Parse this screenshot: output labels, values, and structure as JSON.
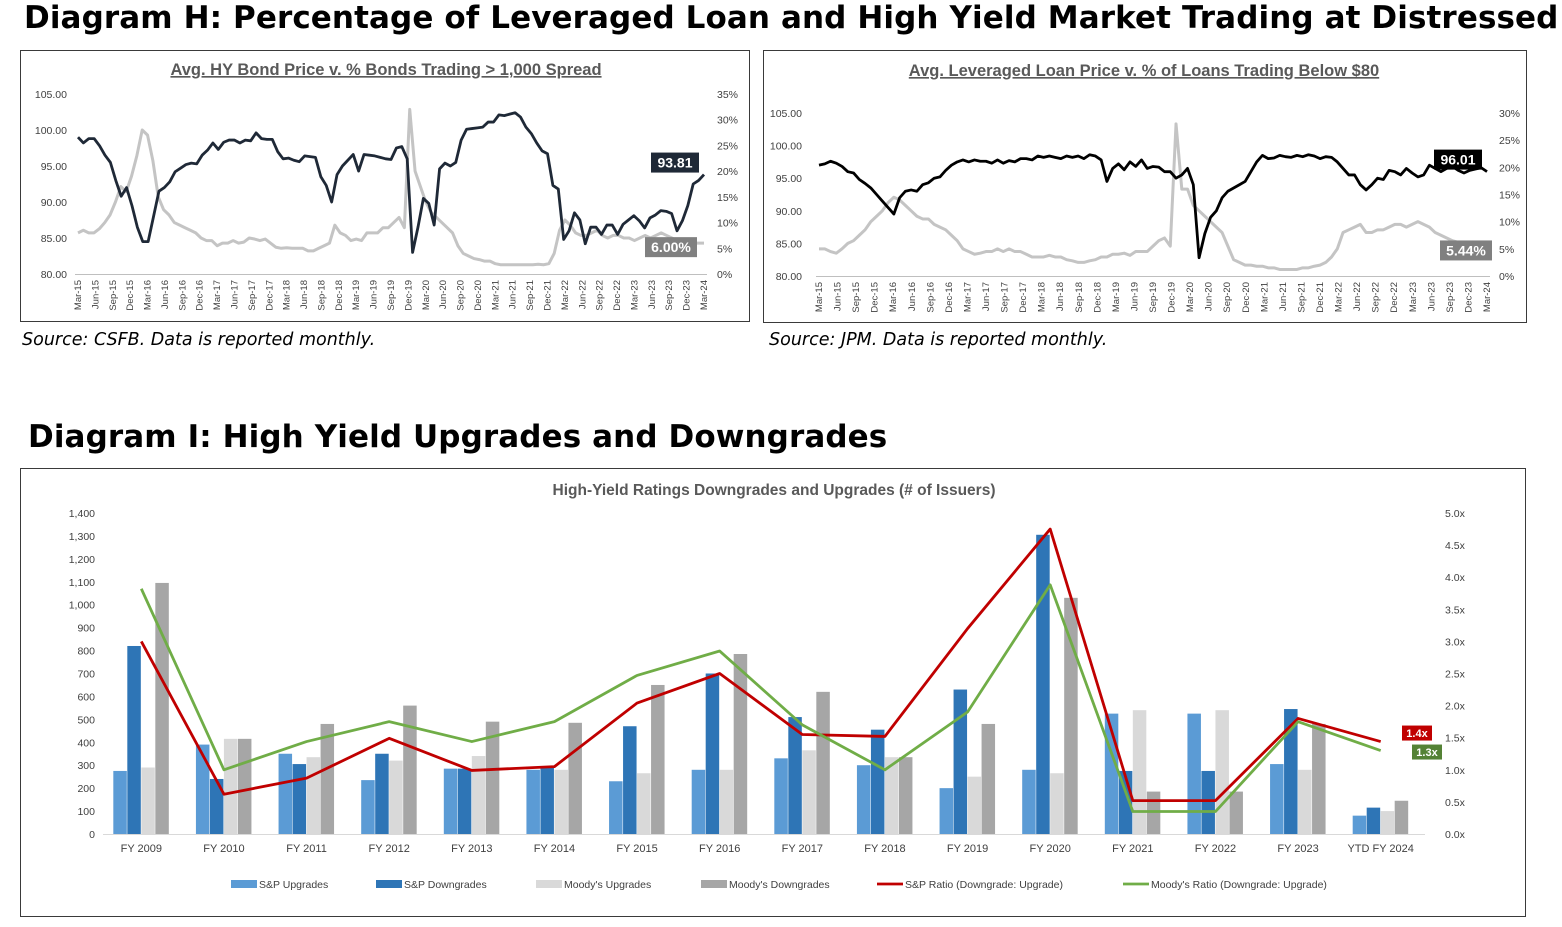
{
  "diagram_h": {
    "title": "Diagram H: Percentage of Leveraged Loan and High Yield Market Trading at Distressed",
    "source_left": "Source: CSFB. Data is reported monthly.",
    "source_right": "Source: JPM. Data is reported monthly."
  },
  "diagram_i": {
    "title": "Diagram I: High Yield Upgrades and Downgrades"
  },
  "colors": {
    "price_line_left": "#1f2937",
    "price_line_right": "#000000",
    "pct_line": "#c4c4c4",
    "sp_upgrades": "#5b9bd5",
    "sp_downgrades": "#2e75b6",
    "moodys_upgrades": "#d9d9d9",
    "moodys_downgrades": "#a6a6a6",
    "sp_ratio": "#c00000",
    "moodys_ratio": "#70ad47"
  },
  "chart_data": [
    {
      "type": "line",
      "title": "Avg. HY Bond Price v. % Bonds Trading > 1,000 Spread",
      "x_ticks": [
        "Mar-15",
        "Jun-15",
        "Sep-15",
        "Dec-15",
        "Mar-16",
        "Jun-16",
        "Sep-16",
        "Dec-16",
        "Mar-17",
        "Jun-17",
        "Sep-17",
        "Dec-17",
        "Mar-18",
        "Jun-18",
        "Sep-18",
        "Dec-18",
        "Mar-19",
        "Jun-19",
        "Sep-19",
        "Dec-19",
        "Mar-20",
        "Jun-20",
        "Sep-20",
        "Dec-20",
        "Mar-21",
        "Jun-21",
        "Sep-21",
        "Dec-21",
        "Mar-22",
        "Jun-22",
        "Sep-22",
        "Dec-22",
        "Mar-23",
        "Jun-23",
        "Sep-23",
        "Dec-23",
        "Mar-24"
      ],
      "y_left_ticks": [
        "105.00",
        "100.00",
        "95.00",
        "90.00",
        "85.00",
        "80.00"
      ],
      "y_right_ticks": [
        "35%",
        "30%",
        "25%",
        "20%",
        "15%",
        "10%",
        "5%",
        "0%"
      ],
      "ylim_left": [
        80,
        105
      ],
      "ylim_right": [
        0,
        35
      ],
      "series": [
        {
          "axis": "left",
          "values": [
            99.0,
            98.2,
            98.8,
            98.8,
            97.8,
            96.5,
            95.5,
            93.0,
            90.8,
            92.0,
            89.5,
            86.5,
            84.5,
            84.5,
            88.0,
            91.5,
            92.0,
            92.8,
            94.2,
            94.7,
            95.2,
            95.4,
            95.3,
            96.5,
            97.2,
            98.2,
            97.3,
            98.3,
            98.6,
            98.6,
            98.2,
            98.6,
            98.5,
            99.6,
            98.8,
            98.7,
            98.7,
            97.0,
            96.0,
            96.1,
            95.8,
            95.6,
            96.4,
            96.3,
            96.2,
            93.5,
            92.3,
            90.0,
            93.8,
            95.0,
            95.8,
            96.6,
            94.3,
            96.6,
            96.5,
            96.4,
            96.2,
            96.0,
            95.9,
            97.5,
            97.7,
            96.0,
            83.0,
            86.5,
            90.5,
            89.8,
            86.8,
            94.6,
            95.4,
            95.0,
            95.5,
            98.6,
            100.1,
            100.2,
            100.3,
            100.4,
            101.1,
            101.1,
            102.1,
            102.0,
            102.2,
            102.4,
            101.8,
            100.4,
            99.5,
            98.2,
            97.1,
            96.7,
            92.3,
            91.8,
            84.8,
            86.0,
            88.5,
            87.5,
            84.2,
            86.5,
            86.5,
            85.5,
            86.8,
            86.8,
            85.5,
            86.9,
            87.5,
            88.1,
            87.4,
            86.4,
            87.8,
            88.2,
            88.8,
            88.7,
            88.4,
            86.0,
            87.4,
            89.5,
            92.5,
            93.0,
            93.81
          ]
        },
        {
          "axis": "right",
          "values": [
            8.0,
            8.5,
            8.0,
            8.0,
            8.8,
            10.0,
            11.5,
            14.0,
            17.0,
            16.0,
            19.0,
            23.0,
            28.0,
            27.0,
            22.0,
            15.0,
            12.5,
            11.5,
            10.0,
            9.5,
            9.0,
            8.5,
            8.0,
            7.0,
            6.5,
            6.5,
            5.5,
            6.0,
            6.0,
            6.5,
            6.0,
            6.2,
            7.0,
            6.8,
            6.5,
            6.8,
            6.0,
            5.2,
            5.0,
            5.1,
            5.0,
            5.0,
            5.0,
            4.5,
            4.5,
            5.0,
            5.5,
            6.0,
            9.5,
            8.0,
            7.5,
            6.5,
            6.8,
            6.5,
            8.0,
            8.0,
            8.0,
            9.0,
            9.0,
            10.0,
            11.0,
            9.0,
            32.0,
            20.0,
            17.0,
            14.0,
            12.0,
            11.0,
            10.0,
            9.0,
            8.0,
            5.5,
            4.0,
            3.5,
            3.0,
            2.8,
            2.5,
            2.5,
            2.0,
            1.8,
            1.8,
            1.8,
            1.8,
            1.8,
            1.8,
            1.8,
            1.9,
            1.8,
            2.0,
            4.0,
            8.5,
            10.5,
            9.5,
            8.0,
            7.5,
            7.5,
            8.0,
            8.5,
            7.5,
            7.0,
            7.5,
            7.5,
            7.0,
            7.0,
            6.5,
            7.0,
            7.5,
            7.0,
            7.5,
            8.0,
            7.5,
            7.0,
            6.5,
            6.5,
            6.2,
            6.0,
            6.0,
            6.0
          ]
        }
      ],
      "callouts": [
        "93.81",
        "6.00%"
      ]
    },
    {
      "type": "line",
      "title": "Avg. Leveraged Loan Price v. % of Loans Trading Below $80",
      "x_ticks": [
        "Mar-15",
        "Jun-15",
        "Sep-15",
        "Dec-15",
        "Mar-16",
        "Jun-16",
        "Sep-16",
        "Dec-16",
        "Mar-17",
        "Jun-17",
        "Sep-17",
        "Dec-17",
        "Mar-18",
        "Jun-18",
        "Sep-18",
        "Dec-18",
        "Mar-19",
        "Jun-19",
        "Sep-19",
        "Dec-19",
        "Mar-20",
        "Jun-20",
        "Sep-20",
        "Dec-20",
        "Mar-21",
        "Jun-21",
        "Sep-21",
        "Dec-21",
        "Mar-22",
        "Jun-22",
        "Sep-22",
        "Dec-22",
        "Mar-23",
        "Jun-23",
        "Sep-23",
        "Dec-23",
        "Mar-24"
      ],
      "y_left_ticks": [
        "105.00",
        "100.00",
        "95.00",
        "90.00",
        "85.00",
        "80.00"
      ],
      "y_right_ticks": [
        "30%",
        "25%",
        "20%",
        "15%",
        "10%",
        "5%",
        "0%"
      ],
      "ylim_left": [
        80,
        105
      ],
      "ylim_right": [
        0,
        30
      ],
      "series": [
        {
          "axis": "left",
          "values": [
            97.0,
            97.2,
            97.6,
            97.3,
            96.8,
            96.0,
            95.8,
            94.8,
            94.2,
            93.5,
            92.5,
            91.5,
            90.5,
            89.5,
            92.0,
            93.0,
            93.2,
            93.0,
            94.0,
            94.3,
            95.0,
            95.2,
            96.2,
            97.0,
            97.5,
            97.8,
            97.5,
            97.8,
            97.6,
            97.6,
            97.3,
            97.8,
            97.3,
            97.7,
            97.5,
            98.0,
            98.0,
            97.8,
            98.4,
            98.2,
            98.4,
            98.2,
            98.0,
            98.4,
            98.2,
            98.4,
            98.0,
            98.6,
            98.4,
            97.8,
            94.5,
            96.5,
            97.2,
            96.3,
            97.5,
            96.8,
            97.8,
            96.5,
            96.8,
            96.7,
            96.0,
            96.0,
            95.0,
            95.5,
            96.5,
            94.0,
            82.8,
            86.5,
            89.0,
            90.0,
            92.0,
            93.0,
            93.5,
            94.0,
            94.5,
            96.0,
            97.5,
            98.5,
            98.0,
            98.1,
            98.5,
            98.3,
            98.2,
            98.5,
            98.3,
            98.6,
            98.4,
            98.0,
            98.3,
            98.2,
            97.5,
            96.5,
            95.5,
            95.5,
            94.0,
            93.2,
            94.0,
            95.0,
            94.8,
            96.2,
            96.0,
            95.5,
            96.5,
            95.8,
            95.2,
            95.5,
            97.0,
            96.5,
            96.0,
            96.5,
            96.8,
            96.2,
            95.8,
            96.2,
            96.4,
            96.6,
            96.01
          ]
        },
        {
          "axis": "right",
          "values": [
            5.0,
            5.0,
            4.5,
            4.2,
            5.0,
            6.0,
            6.5,
            7.5,
            8.5,
            10.0,
            11.0,
            12.0,
            13.5,
            14.5,
            14.0,
            13.0,
            12.0,
            11.0,
            10.5,
            10.5,
            9.5,
            9.0,
            8.5,
            7.5,
            6.5,
            5.0,
            4.5,
            4.0,
            4.2,
            4.5,
            4.5,
            5.0,
            4.5,
            5.0,
            4.5,
            4.5,
            4.0,
            3.5,
            3.5,
            3.5,
            3.8,
            3.5,
            3.5,
            3.0,
            2.8,
            2.5,
            2.5,
            2.8,
            3.0,
            3.5,
            3.5,
            4.0,
            4.0,
            4.2,
            3.8,
            4.5,
            4.5,
            4.5,
            5.5,
            6.5,
            7.0,
            5.5,
            28.0,
            16.0,
            16.0,
            13.0,
            12.0,
            11.0,
            10.0,
            9.0,
            8.0,
            5.5,
            3.0,
            2.5,
            2.0,
            2.0,
            1.8,
            1.8,
            1.5,
            1.5,
            1.2,
            1.2,
            1.2,
            1.2,
            1.5,
            1.5,
            1.8,
            2.0,
            2.5,
            3.5,
            5.0,
            8.0,
            8.5,
            9.0,
            9.5,
            8.0,
            8.0,
            8.5,
            8.5,
            9.0,
            9.5,
            9.5,
            9.0,
            9.5,
            10.0,
            9.5,
            9.0,
            8.0,
            7.5,
            7.0,
            6.5,
            6.2,
            6.0,
            5.9,
            5.8,
            5.6,
            5.44
          ]
        }
      ],
      "callouts": [
        "96.01",
        "5.44%"
      ]
    },
    {
      "type": "bar",
      "title": "High-Yield Ratings Downgrades and Upgrades (# of Issuers)",
      "categories": [
        "FY 2009",
        "FY 2010",
        "FY 2011",
        "FY 2012",
        "FY 2013",
        "FY 2014",
        "FY 2015",
        "FY 2016",
        "FY 2017",
        "FY 2018",
        "FY 2019",
        "FY 2020",
        "FY 2021",
        "FY 2022",
        "FY 2023",
        "YTD FY 2024"
      ],
      "y_left_ticks": [
        "1,400",
        "1,300",
        "1,200",
        "1,100",
        "1,000",
        "900",
        "800",
        "700",
        "600",
        "500",
        "400",
        "300",
        "200",
        "100",
        "0"
      ],
      "y_right_ticks": [
        "5.0x",
        "4.5x",
        "4.0x",
        "3.5x",
        "3.0x",
        "2.5x",
        "2.0x",
        "1.5x",
        "1.0x",
        "0.5x",
        "0.0x"
      ],
      "ylim_left": [
        0,
        1400
      ],
      "ylim_right": [
        0,
        5
      ],
      "series": [
        {
          "name": "S&P Upgrades",
          "values": [
            275,
            390,
            350,
            235,
            285,
            280,
            230,
            280,
            330,
            300,
            200,
            280,
            525,
            525,
            305,
            80
          ]
        },
        {
          "name": "S&P Downgrades",
          "values": [
            820,
            240,
            305,
            350,
            285,
            295,
            470,
            700,
            510,
            455,
            630,
            1305,
            275,
            275,
            545,
            115
          ]
        },
        {
          "name": "Moody's Upgrades",
          "values": [
            290,
            415,
            335,
            320,
            340,
            280,
            265,
            280,
            365,
            335,
            250,
            265,
            540,
            540,
            280,
            100
          ]
        },
        {
          "name": "Moody's Downgrades",
          "values": [
            1095,
            415,
            480,
            560,
            490,
            485,
            650,
            785,
            620,
            335,
            480,
            1030,
            185,
            185,
            480,
            145
          ]
        },
        {
          "name": "S&P Ratio (Downgrade: Upgrade)",
          "type": "line",
          "axis": "right",
          "values": [
            3.0,
            0.62,
            0.87,
            1.49,
            0.99,
            1.05,
            2.04,
            2.5,
            1.55,
            1.52,
            3.2,
            4.75,
            0.52,
            0.52,
            1.8,
            1.44
          ]
        },
        {
          "name": "Moody's Ratio (Downgrade: Upgrade)",
          "type": "line",
          "axis": "right",
          "values": [
            3.82,
            1.0,
            1.44,
            1.75,
            1.44,
            1.75,
            2.47,
            2.85,
            1.7,
            1.0,
            1.9,
            3.88,
            0.35,
            0.35,
            1.75,
            1.3
          ]
        }
      ],
      "callouts": [
        "1.4x",
        "1.3x"
      ]
    }
  ]
}
